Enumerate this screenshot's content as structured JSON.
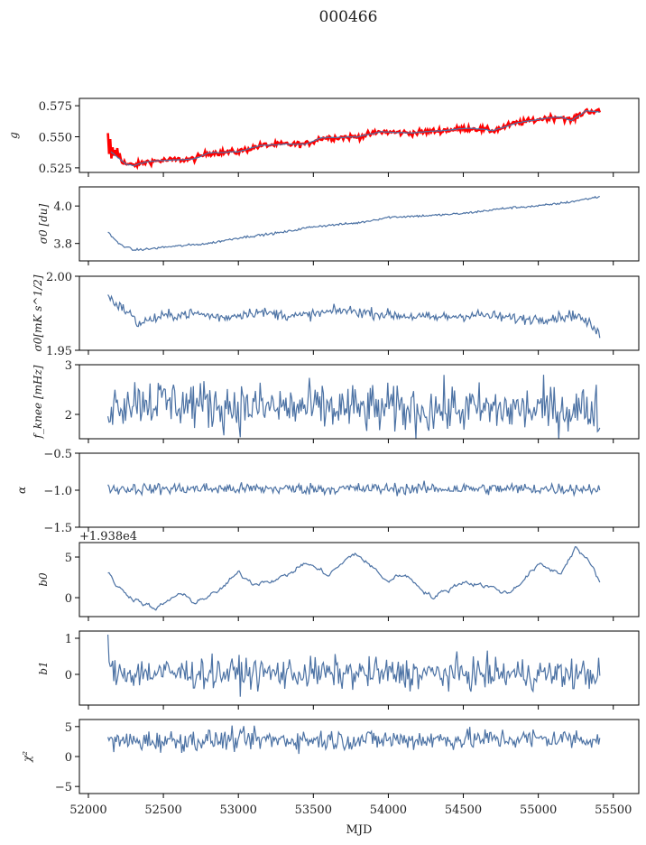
{
  "chart_data": {
    "type": "line",
    "title": "000466",
    "xlabel": "MJD",
    "xlim": [
      51940,
      55670
    ],
    "x_ticks": [
      52000,
      52500,
      53000,
      53500,
      54000,
      54500,
      55000,
      55500
    ],
    "x_tick_labels": [
      "52000",
      "52500",
      "53000",
      "53500",
      "54000",
      "54500",
      "55000",
      "55500"
    ],
    "x_range_data": [
      52130,
      55410
    ],
    "colors": {
      "line": "#4c72a4",
      "raw": "#ff0000"
    },
    "panels": [
      {
        "ylabel": "g",
        "ylim": [
          0.5213,
          0.5809
        ],
        "y_ticks": [
          0.525,
          0.55,
          0.575
        ],
        "y_tick_labels": [
          "0.525",
          "0.550",
          "0.575"
        ],
        "series": [
          {
            "name": "raw",
            "color": "#ff0000",
            "noise": 0.0012,
            "trend": [
              [
                52130,
                0.545
              ],
              [
                52180,
                0.536
              ],
              [
                52250,
                0.528
              ],
              [
                52300,
                0.527
              ],
              [
                52400,
                0.53
              ],
              [
                52500,
                0.531
              ],
              [
                52700,
                0.532
              ],
              [
                52800,
                0.537
              ],
              [
                53000,
                0.538
              ],
              [
                53150,
                0.543
              ],
              [
                53300,
                0.544
              ],
              [
                53450,
                0.544
              ],
              [
                53550,
                0.549
              ],
              [
                53800,
                0.55
              ],
              [
                53950,
                0.554
              ],
              [
                54150,
                0.553
              ],
              [
                54350,
                0.555
              ],
              [
                54550,
                0.557
              ],
              [
                54700,
                0.555
              ],
              [
                54850,
                0.561
              ],
              [
                55050,
                0.565
              ],
              [
                55150,
                0.566
              ],
              [
                55220,
                0.563
              ],
              [
                55320,
                0.571
              ],
              [
                55410,
                0.57
              ]
            ]
          },
          {
            "name": "fit",
            "color": "#4c72a4",
            "noise": 0.0002,
            "trend": [
              [
                52150,
                0.538
              ],
              [
                52250,
                0.528
              ],
              [
                52300,
                0.527
              ],
              [
                52400,
                0.53
              ],
              [
                52500,
                0.531
              ],
              [
                52700,
                0.532
              ],
              [
                52800,
                0.537
              ],
              [
                53000,
                0.538
              ],
              [
                53150,
                0.543
              ],
              [
                53300,
                0.544
              ],
              [
                53450,
                0.544
              ],
              [
                53550,
                0.549
              ],
              [
                53800,
                0.55
              ],
              [
                53950,
                0.554
              ],
              [
                54150,
                0.553
              ],
              [
                54350,
                0.555
              ],
              [
                54550,
                0.557
              ],
              [
                54700,
                0.555
              ],
              [
                54850,
                0.561
              ],
              [
                55050,
                0.565
              ],
              [
                55150,
                0.566
              ],
              [
                55220,
                0.563
              ],
              [
                55320,
                0.571
              ],
              [
                55410,
                0.57
              ]
            ]
          }
        ]
      },
      {
        "ylabel": "σ0 [du]",
        "ylim": [
          3.707,
          4.102
        ],
        "y_ticks": [
          3.8,
          4.0
        ],
        "y_tick_labels": [
          "3.8",
          "4.0"
        ],
        "series": [
          {
            "name": "sigma0",
            "noise": 0.003,
            "trend": [
              [
                52130,
                3.86
              ],
              [
                52200,
                3.8
              ],
              [
                52300,
                3.765
              ],
              [
                52400,
                3.77
              ],
              [
                52500,
                3.78
              ],
              [
                52800,
                3.8
              ],
              [
                53000,
                3.83
              ],
              [
                53300,
                3.86
              ],
              [
                53500,
                3.89
              ],
              [
                53800,
                3.91
              ],
              [
                54000,
                3.94
              ],
              [
                54300,
                3.95
              ],
              [
                54500,
                3.96
              ],
              [
                54800,
                3.99
              ],
              [
                55000,
                4.0
              ],
              [
                55200,
                4.02
              ],
              [
                55410,
                4.05
              ]
            ]
          }
        ]
      },
      {
        "ylabel": "σ0[mK s^1/2]",
        "ylim": [
          1.95,
          2.0
        ],
        "y_ticks": [
          1.95,
          2.0
        ],
        "y_tick_labels": [
          "1.95",
          "2.00"
        ],
        "series": [
          {
            "name": "sigma0_cal",
            "noise": 0.0018,
            "trend": [
              [
                52130,
                1.987
              ],
              [
                52200,
                1.98
              ],
              [
                52280,
                1.975
              ],
              [
                52320,
                1.968
              ],
              [
                52500,
                1.973
              ],
              [
                52700,
                1.975
              ],
              [
                52900,
                1.972
              ],
              [
                53100,
                1.976
              ],
              [
                53400,
                1.973
              ],
              [
                53700,
                1.977
              ],
              [
                54000,
                1.974
              ],
              [
                54300,
                1.972
              ],
              [
                54600,
                1.974
              ],
              [
                54900,
                1.971
              ],
              [
                55100,
                1.972
              ],
              [
                55250,
                1.974
              ],
              [
                55350,
                1.967
              ],
              [
                55410,
                1.96
              ]
            ]
          }
        ]
      },
      {
        "ylabel": "f_knee [mHz]",
        "ylim": [
          1.51,
          3.0
        ],
        "y_ticks": [
          2,
          3
        ],
        "y_tick_labels": [
          "2",
          "3"
        ],
        "series": [
          {
            "name": "fknee",
            "noise": 0.25,
            "trend": [
              [
                52130,
                2.2
              ],
              [
                52300,
                2.3
              ],
              [
                53000,
                2.15
              ],
              [
                54000,
                2.1
              ],
              [
                55410,
                2.1
              ]
            ]
          }
        ]
      },
      {
        "ylabel": "α",
        "ylim": [
          -1.5,
          -0.5
        ],
        "y_ticks": [
          -1.5,
          -1.0,
          -0.5
        ],
        "y_tick_labels": [
          "−1.5",
          "−1.0",
          "−0.5"
        ],
        "series": [
          {
            "name": "alpha",
            "noise": 0.04,
            "trend": [
              [
                52130,
                -0.98
              ],
              [
                55410,
                -0.98
              ]
            ]
          }
        ]
      },
      {
        "ylabel": "b0",
        "ylim": [
          -2.33,
          6.78
        ],
        "y_ticks": [
          0,
          5
        ],
        "y_tick_labels": [
          "0",
          "5"
        ],
        "offset_label": "+1.938e4",
        "series": [
          {
            "name": "b0",
            "noise": 0.25,
            "trend": [
              [
                52130,
                3
              ],
              [
                52200,
                1.2
              ],
              [
                52300,
                0
              ],
              [
                52450,
                -1.5
              ],
              [
                52600,
                0.5
              ],
              [
                52700,
                -0.5
              ],
              [
                52850,
                0.5
              ],
              [
                53000,
                3
              ],
              [
                53100,
                1.8
              ],
              [
                53300,
                2.5
              ],
              [
                53450,
                4.3
              ],
              [
                53600,
                2.8
              ],
              [
                53780,
                5.5
              ],
              [
                54000,
                2
              ],
              [
                54100,
                3
              ],
              [
                54300,
                0
              ],
              [
                54500,
                2
              ],
              [
                54650,
                1.5
              ],
              [
                54800,
                0.5
              ],
              [
                55000,
                4
              ],
              [
                55150,
                3
              ],
              [
                55250,
                6.3
              ],
              [
                55350,
                4
              ],
              [
                55410,
                2
              ]
            ]
          }
        ]
      },
      {
        "ylabel": "b1",
        "ylim": [
          -0.85,
          1.2
        ],
        "y_ticks": [
          0,
          1
        ],
        "y_tick_labels": [
          "0",
          "1"
        ],
        "series": [
          {
            "name": "b1",
            "noise": 0.22,
            "trend": [
              [
                52130,
                0.05
              ],
              [
                55410,
                0.0
              ]
            ]
          }
        ]
      },
      {
        "ylabel": "χ²",
        "ylim": [
          -6.18,
          6.18
        ],
        "y_ticks": [
          -5,
          0,
          5
        ],
        "y_tick_labels": [
          "−5",
          "0",
          "5"
        ],
        "series": [
          {
            "name": "chi2",
            "noise": 0.9,
            "trend": [
              [
                52130,
                2.5
              ],
              [
                53000,
                2.8
              ],
              [
                54000,
                2.8
              ],
              [
                55410,
                3.0
              ]
            ]
          }
        ]
      }
    ]
  }
}
